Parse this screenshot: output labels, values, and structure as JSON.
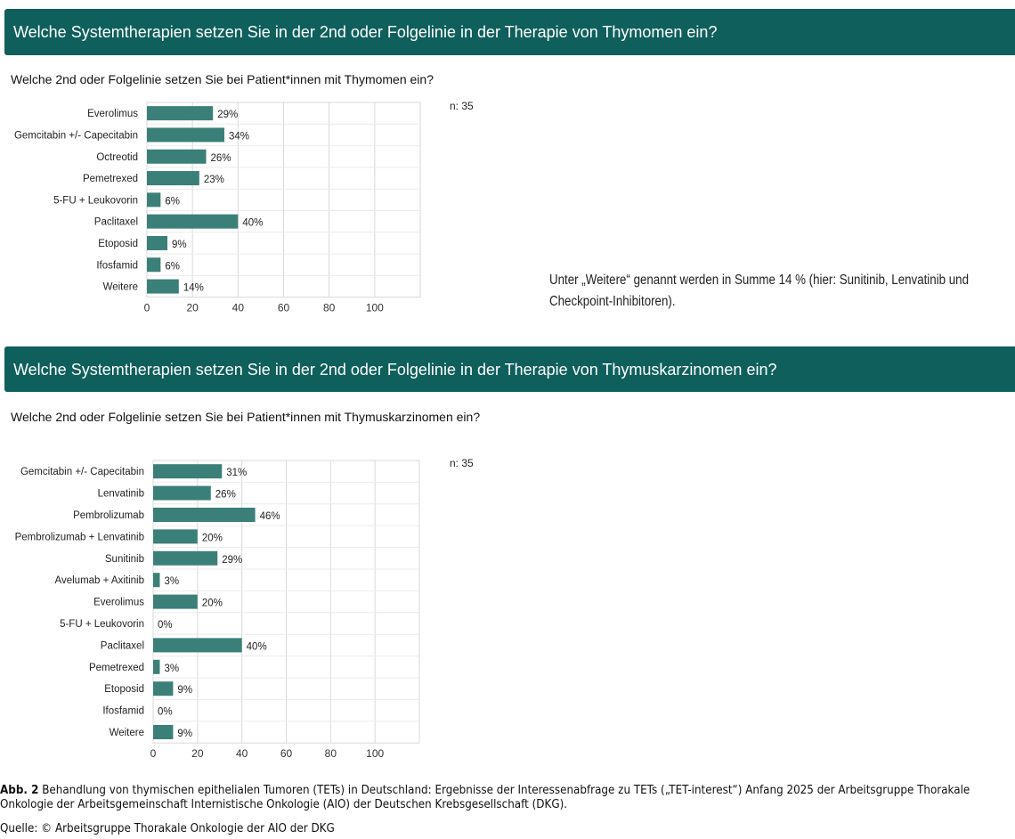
{
  "section1": {
    "banner": "Welche Systemtherapien setzen Sie in der 2nd oder Folgelinie in der Therapie von Thymomen ein?",
    "question": "Welche 2nd oder Folgelinie setzen Sie bei Patient*innen mit Thymomen ein?",
    "n_label": "n: 35",
    "note": "Unter „Weitere“ genannt werden in Summe 14 % (hier: Sunitinib, Lenvatinib und Checkpoint-Inhibitoren)."
  },
  "section2": {
    "banner": "Welche Systemtherapien setzen Sie in der 2nd oder Folgelinie in der Therapie von Thymuskarzinomen ein?",
    "question": "Welche 2nd oder Folgelinie setzen Sie bei Patient*innen mit Thymuskarzinomen ein?",
    "n_label": "n: 35"
  },
  "caption": {
    "figure_label": "Abb. 2",
    "text": " Behandlung von thymischen epithelialen Tumoren (TETs) in Deutschland: Ergebnisse der Interessenabfrage zu TETs („TET-interest“) Anfang 2025 der Arbeitsgruppe Thorakale Onkologie der Arbeitsgemeinschaft Internistische Onkologie (AIO) der Deutschen Krebsgesellschaft (DKG).",
    "source": "Quelle: © Arbeitsgruppe Thorakale Onkologie der AIO der DKG"
  },
  "colors": {
    "banner": "#0f5f5c",
    "bar": "#3b7f79",
    "grid": "#d9d9d9"
  },
  "chart_data": [
    {
      "type": "bar",
      "orientation": "horizontal",
      "categories": [
        "Everolimus",
        "Gemcitabin +/- Capecitabin",
        "Octreotid",
        "Pemetrexed",
        "5-FU + Leukovorin",
        "Paclitaxel",
        "Etoposid",
        "Ifosfamid",
        "Weitere"
      ],
      "values": [
        29,
        34,
        26,
        23,
        6,
        40,
        9,
        6,
        14
      ],
      "value_labels": [
        "29%",
        "34%",
        "26%",
        "23%",
        "6%",
        "40%",
        "9%",
        "6%",
        "14%"
      ],
      "xlim": [
        0,
        120
      ],
      "xticks": [
        "0",
        "20",
        "40",
        "60",
        "80",
        "100"
      ],
      "grid": true
    },
    {
      "type": "bar",
      "orientation": "horizontal",
      "categories": [
        "Gemcitabin +/- Capecitabin",
        "Lenvatinib",
        "Pembrolizumab",
        "Pembrolizumab + Lenvatinib",
        "Sunitinib",
        "Avelumab + Axitinib",
        "Everolimus",
        "5-FU + Leukovorin",
        "Paclitaxel",
        "Pemetrexed",
        "Etoposid",
        "Ifosfamid",
        "Weitere"
      ],
      "values": [
        31,
        26,
        46,
        20,
        29,
        3,
        20,
        0,
        40,
        3,
        9,
        0,
        9
      ],
      "value_labels": [
        "31%",
        "26%",
        "46%",
        "20%",
        "29%",
        "3%",
        "20%",
        "0%",
        "40%",
        "3%",
        "9%",
        "0%",
        "9%"
      ],
      "xlim": [
        0,
        120
      ],
      "xticks": [
        "0",
        "20",
        "40",
        "60",
        "80",
        "100"
      ],
      "grid": true
    }
  ]
}
